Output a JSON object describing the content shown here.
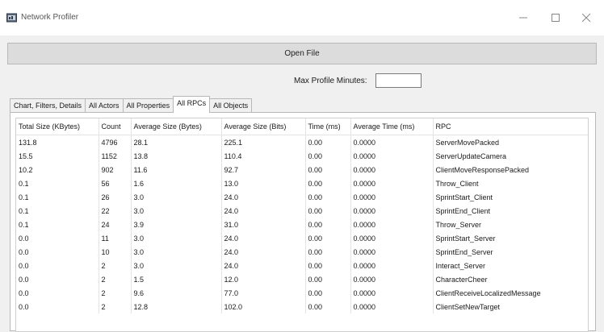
{
  "window": {
    "title": "Network Profiler"
  },
  "toolbar": {
    "open_file_label": "Open File",
    "max_minutes_label": "Max Profile Minutes:",
    "max_minutes_value": ""
  },
  "tabs": [
    {
      "label": "Chart, Filters, Details",
      "active": false
    },
    {
      "label": "All Actors",
      "active": false
    },
    {
      "label": "All Properties",
      "active": false
    },
    {
      "label": "All RPCs",
      "active": true
    },
    {
      "label": "All Objects",
      "active": false
    }
  ],
  "table": {
    "columns": [
      "Total Size (KBytes)",
      "Count",
      "Average Size (Bytes)",
      "Average Size (Bits)",
      "Time (ms)",
      "Average Time (ms)",
      "RPC"
    ],
    "rows": [
      [
        "131.8",
        "4796",
        "28.1",
        "225.1",
        "0.00",
        "0.0000",
        "ServerMovePacked"
      ],
      [
        "15.5",
        "1152",
        "13.8",
        "110.4",
        "0.00",
        "0.0000",
        "ServerUpdateCamera"
      ],
      [
        "10.2",
        "902",
        "11.6",
        "92.7",
        "0.00",
        "0.0000",
        "ClientMoveResponsePacked"
      ],
      [
        "0.1",
        "56",
        "1.6",
        "13.0",
        "0.00",
        "0.0000",
        "Throw_Client"
      ],
      [
        "0.1",
        "26",
        "3.0",
        "24.0",
        "0.00",
        "0.0000",
        "SprintStart_Client"
      ],
      [
        "0.1",
        "22",
        "3.0",
        "24.0",
        "0.00",
        "0.0000",
        "SprintEnd_Client"
      ],
      [
        "0.1",
        "24",
        "3.9",
        "31.0",
        "0.00",
        "0.0000",
        "Throw_Server"
      ],
      [
        "0.0",
        "11",
        "3.0",
        "24.0",
        "0.00",
        "0.0000",
        "SprintStart_Server"
      ],
      [
        "0.0",
        "10",
        "3.0",
        "24.0",
        "0.00",
        "0.0000",
        "SprintEnd_Server"
      ],
      [
        "0.0",
        "2",
        "3.0",
        "24.0",
        "0.00",
        "0.0000",
        "Interact_Server"
      ],
      [
        "0.0",
        "2",
        "1.5",
        "12.0",
        "0.00",
        "0.0000",
        "CharacterCheer"
      ],
      [
        "0.0",
        "2",
        "9.6",
        "77.0",
        "0.00",
        "0.0000",
        "ClientReceiveLocalizedMessage"
      ],
      [
        "0.0",
        "2",
        "12.8",
        "102.0",
        "0.00",
        "0.0000",
        "ClientSetNewTarget"
      ]
    ]
  }
}
